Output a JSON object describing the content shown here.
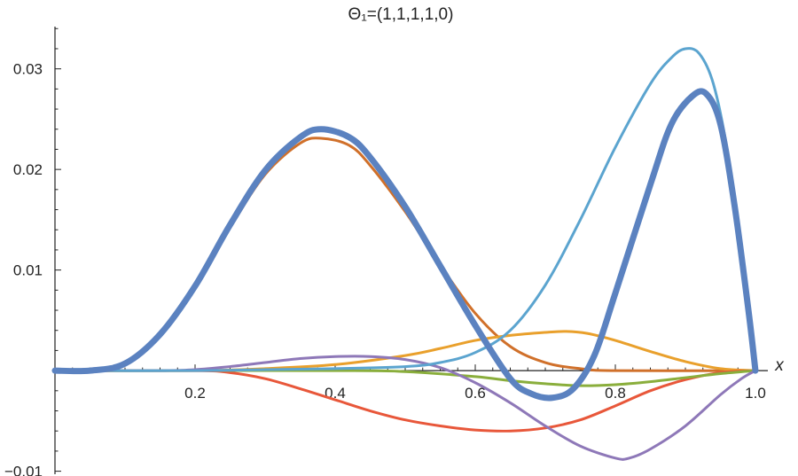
{
  "chart_data": {
    "type": "line",
    "title": "Θ₁=(1,1,1,1,0)",
    "xlabel": "x",
    "ylabel": "",
    "xlim": [
      0,
      1.0
    ],
    "ylim": [
      -0.0103,
      0.0342
    ],
    "grid": false,
    "legend": "none",
    "x_ticks": [
      0.2,
      0.4,
      0.6,
      0.8,
      1.0
    ],
    "x_tick_labels": [
      "0.2",
      "0.4",
      "0.6",
      "0.8",
      "1.0"
    ],
    "y_ticks": [
      -0.01,
      0.01,
      0.02,
      0.03
    ],
    "y_tick_labels": [
      "−0.01",
      "0.01",
      "0.02",
      "0.03"
    ],
    "series": [
      {
        "color": "#D0702A",
        "width": 3,
        "points": [
          [
            0,
            0
          ],
          [
            0.05,
            0
          ],
          [
            0.1,
            0.0007
          ],
          [
            0.15,
            0.0035
          ],
          [
            0.2,
            0.0082
          ],
          [
            0.25,
            0.0142
          ],
          [
            0.3,
            0.0195
          ],
          [
            0.35,
            0.0226
          ],
          [
            0.38,
            0.0231
          ],
          [
            0.42,
            0.0224
          ],
          [
            0.45,
            0.0204
          ],
          [
            0.5,
            0.0158
          ],
          [
            0.55,
            0.0105
          ],
          [
            0.6,
            0.0057
          ],
          [
            0.65,
            0.0024
          ],
          [
            0.7,
            0.0008
          ],
          [
            0.75,
            0.0002
          ],
          [
            0.8,
            0
          ],
          [
            1.0,
            0
          ]
        ]
      },
      {
        "color": "#E9A02C",
        "width": 3,
        "points": [
          [
            0,
            0
          ],
          [
            0.2,
            0
          ],
          [
            0.3,
            0.0002
          ],
          [
            0.4,
            0.0006
          ],
          [
            0.5,
            0.0015
          ],
          [
            0.55,
            0.0022
          ],
          [
            0.6,
            0.003
          ],
          [
            0.65,
            0.0035
          ],
          [
            0.7,
            0.0038
          ],
          [
            0.73,
            0.0039
          ],
          [
            0.76,
            0.0037
          ],
          [
            0.8,
            0.003
          ],
          [
            0.85,
            0.0019
          ],
          [
            0.9,
            0.0009
          ],
          [
            0.95,
            0.0002
          ],
          [
            1.0,
            0
          ]
        ]
      },
      {
        "color": "#E8573A",
        "width": 3,
        "points": [
          [
            0,
            0
          ],
          [
            0.2,
            0
          ],
          [
            0.25,
            -0.0002
          ],
          [
            0.3,
            -0.0008
          ],
          [
            0.35,
            -0.0018
          ],
          [
            0.4,
            -0.0029
          ],
          [
            0.45,
            -0.004
          ],
          [
            0.5,
            -0.0049
          ],
          [
            0.55,
            -0.0055
          ],
          [
            0.6,
            -0.0059
          ],
          [
            0.65,
            -0.006
          ],
          [
            0.7,
            -0.0057
          ],
          [
            0.75,
            -0.0049
          ],
          [
            0.8,
            -0.0035
          ],
          [
            0.85,
            -0.002
          ],
          [
            0.9,
            -0.0009
          ],
          [
            0.95,
            -0.0002
          ],
          [
            1.0,
            0
          ]
        ]
      },
      {
        "color": "#8AAE3C",
        "width": 3,
        "points": [
          [
            0,
            0
          ],
          [
            0.4,
            0
          ],
          [
            0.5,
            -0.0001
          ],
          [
            0.6,
            -0.0006
          ],
          [
            0.65,
            -0.001
          ],
          [
            0.7,
            -0.0013
          ],
          [
            0.75,
            -0.0015
          ],
          [
            0.8,
            -0.0014
          ],
          [
            0.85,
            -0.0011
          ],
          [
            0.9,
            -0.0007
          ],
          [
            0.95,
            -0.0003
          ],
          [
            1.0,
            0
          ]
        ]
      },
      {
        "color": "#8E78B8",
        "width": 3,
        "points": [
          [
            0,
            0
          ],
          [
            0.15,
            0
          ],
          [
            0.2,
            0.0001
          ],
          [
            0.25,
            0.0004
          ],
          [
            0.3,
            0.0008
          ],
          [
            0.35,
            0.0012
          ],
          [
            0.4,
            0.0014
          ],
          [
            0.45,
            0.0014
          ],
          [
            0.5,
            0.0011
          ],
          [
            0.55,
            0.0003
          ],
          [
            0.6,
            -0.0012
          ],
          [
            0.65,
            -0.0032
          ],
          [
            0.7,
            -0.0055
          ],
          [
            0.75,
            -0.0075
          ],
          [
            0.8,
            -0.0087
          ],
          [
            0.82,
            -0.0087
          ],
          [
            0.85,
            -0.0078
          ],
          [
            0.9,
            -0.0055
          ],
          [
            0.95,
            -0.0024
          ],
          [
            0.98,
            -0.0008
          ],
          [
            1.0,
            0
          ]
        ]
      },
      {
        "color": "#5BA4CF",
        "width": 3,
        "points": [
          [
            0,
            0
          ],
          [
            0.2,
            0
          ],
          [
            0.3,
            0.0001
          ],
          [
            0.4,
            0.0002
          ],
          [
            0.5,
            0.0004
          ],
          [
            0.55,
            0.0008
          ],
          [
            0.6,
            0.0018
          ],
          [
            0.65,
            0.004
          ],
          [
            0.7,
            0.0085
          ],
          [
            0.75,
            0.015
          ],
          [
            0.8,
            0.0222
          ],
          [
            0.85,
            0.0285
          ],
          [
            0.88,
            0.0311
          ],
          [
            0.9,
            0.032
          ],
          [
            0.92,
            0.0315
          ],
          [
            0.94,
            0.0285
          ],
          [
            0.96,
            0.0218
          ],
          [
            0.98,
            0.0115
          ],
          [
            1.0,
            0
          ]
        ]
      },
      {
        "color": "#5B82C0",
        "width": 7,
        "points": [
          [
            0,
            0
          ],
          [
            0.05,
            0
          ],
          [
            0.1,
            0.0007
          ],
          [
            0.15,
            0.0036
          ],
          [
            0.2,
            0.0084
          ],
          [
            0.25,
            0.0145
          ],
          [
            0.3,
            0.0199
          ],
          [
            0.35,
            0.0232
          ],
          [
            0.38,
            0.024
          ],
          [
            0.42,
            0.0232
          ],
          [
            0.45,
            0.0212
          ],
          [
            0.5,
            0.0163
          ],
          [
            0.55,
            0.0104
          ],
          [
            0.6,
            0.0045
          ],
          [
            0.65,
            -0.0008
          ],
          [
            0.68,
            -0.0023
          ],
          [
            0.71,
            -0.0027
          ],
          [
            0.74,
            -0.0018
          ],
          [
            0.77,
            0.0015
          ],
          [
            0.8,
            0.0077
          ],
          [
            0.85,
            0.0185
          ],
          [
            0.88,
            0.0245
          ],
          [
            0.91,
            0.0273
          ],
          [
            0.93,
            0.0275
          ],
          [
            0.95,
            0.0245
          ],
          [
            0.97,
            0.0165
          ],
          [
            0.99,
            0.006
          ],
          [
            1.0,
            0
          ]
        ]
      }
    ]
  }
}
